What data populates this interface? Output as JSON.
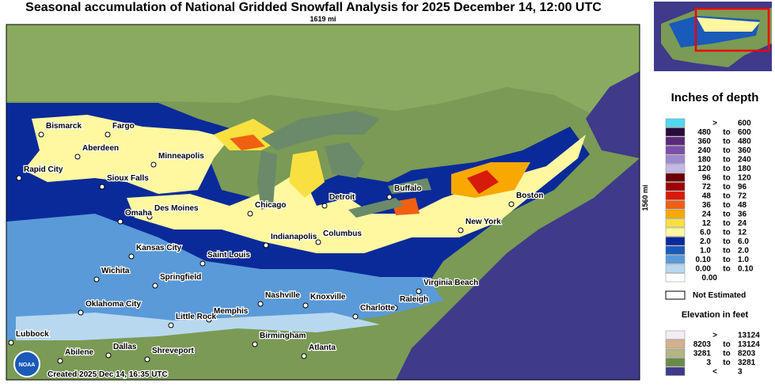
{
  "header": {
    "title": "Seasonal accumulation of National Gridded Snowfall Analysis for 2025 December 14, 12:00 UTC",
    "scale_x": "1619 mi",
    "scale_y": "1560 mi"
  },
  "map": {
    "cities": [
      "Bismarck",
      "Fargo",
      "Aberdeen",
      "Rapid City",
      "Minneapolis",
      "Sioux Falls",
      "Des Moines",
      "Omaha",
      "Chicago",
      "Detroit",
      "Buffalo",
      "Boston",
      "New York",
      "Indianapolis",
      "Columbus",
      "Kansas City",
      "Saint Louis",
      "Wichita",
      "Springfield",
      "Virginia Beach",
      "Nashville",
      "Knoxville",
      "Raleigh",
      "Oklahoma City",
      "Memphis",
      "Charlotte",
      "Little Rock",
      "Birmingham",
      "Atlanta",
      "Lubbock",
      "Abilene",
      "Dallas",
      "Shreveport"
    ],
    "created": "Created 2025 Dec 14, 16:35 UTC",
    "logo": "NOAA"
  },
  "legend": {
    "title": "Inches of depth",
    "items": [
      {
        "low": ">",
        "high": "600",
        "color": "#4fd8f0"
      },
      {
        "low": "480",
        "to": "to",
        "high": "600",
        "color": "#2a0a3a"
      },
      {
        "low": "360",
        "to": "to",
        "high": "480",
        "color": "#5a2a7a"
      },
      {
        "low": "240",
        "to": "to",
        "high": "360",
        "color": "#7a4fa8"
      },
      {
        "low": "180",
        "to": "to",
        "high": "240",
        "color": "#9f8ad0"
      },
      {
        "low": "120",
        "to": "to",
        "high": "180",
        "color": "#c4b8e8"
      },
      {
        "low": "96",
        "to": "to",
        "high": "120",
        "color": "#6b0000"
      },
      {
        "low": "72",
        "to": "to",
        "high": "96",
        "color": "#a00000"
      },
      {
        "low": "48",
        "to": "to",
        "high": "72",
        "color": "#d81a0a"
      },
      {
        "low": "36",
        "to": "to",
        "high": "48",
        "color": "#f06010"
      },
      {
        "low": "24",
        "to": "to",
        "high": "36",
        "color": "#f8a800"
      },
      {
        "low": "12",
        "to": "to",
        "high": "24",
        "color": "#f8e040"
      },
      {
        "low": "6.0",
        "to": "to",
        "high": "12",
        "color": "#fff8a0"
      },
      {
        "low": "2.0",
        "to": "to",
        "high": "6.0",
        "color": "#0a2a9a"
      },
      {
        "low": "1.0",
        "to": "to",
        "high": "2.0",
        "color": "#1a5ab8"
      },
      {
        "low": "0.10",
        "to": "to",
        "high": "1.0",
        "color": "#5a9ad8"
      },
      {
        "low": "0.00",
        "to": "to",
        "high": "0.10",
        "color": "#b8d8f0"
      },
      {
        "low": "0.00",
        "color": "#ffffff"
      }
    ],
    "not_estimated": "Not Estimated",
    "elevation_title": "Elevation in feet",
    "elevation_items": [
      {
        "low": ">",
        "high": "13124",
        "color": "#f4ecf4"
      },
      {
        "low": "8203",
        "to": "to",
        "high": "13124",
        "color": "#d4b08c"
      },
      {
        "low": "3281",
        "to": "to",
        "high": "8203",
        "color": "#b4b484"
      },
      {
        "low": "3",
        "to": "to",
        "high": "3281",
        "color": "#6a8a4a"
      },
      {
        "low": "<",
        "high": "3",
        "color": "#3f3a8a"
      }
    ]
  }
}
